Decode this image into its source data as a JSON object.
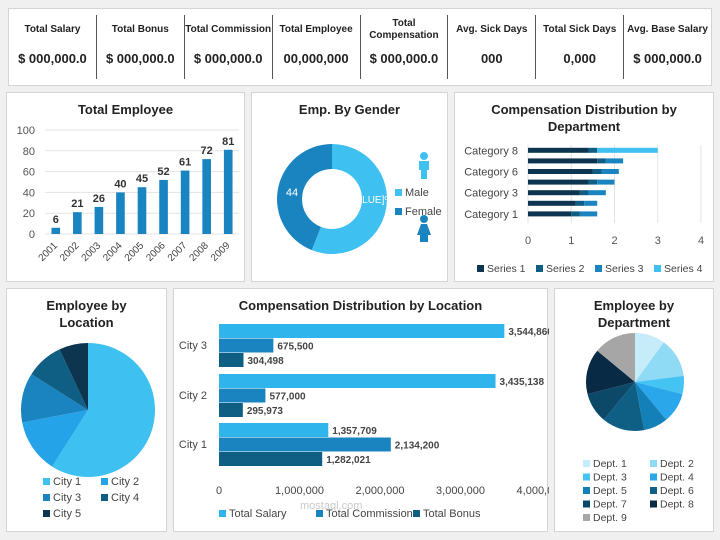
{
  "kpis": [
    {
      "label": "Total Salary",
      "value": "$ 000,000.0"
    },
    {
      "label": "Total Bonus",
      "value": "$ 000,000.0"
    },
    {
      "label": "Total Commission",
      "value": "$ 000,000.0"
    },
    {
      "label": "Total Employee",
      "value": "00,000,000"
    },
    {
      "label": "Total Compensation",
      "value": "$ 000,000.0"
    },
    {
      "label": "Avg. Sick Days",
      "value": "000"
    },
    {
      "label": "Total Sick Days",
      "value": "0,000"
    },
    {
      "label": "Avg. Base Salary",
      "value": "$ 000,000.0"
    }
  ],
  "chart_data": [
    {
      "type": "bar",
      "title": "Total Employee",
      "categories": [
        "2001",
        "2002",
        "2003",
        "2004",
        "2005",
        "2006",
        "2007",
        "2008",
        "2009"
      ],
      "values": [
        6,
        21,
        26,
        40,
        45,
        52,
        61,
        72,
        81
      ],
      "ylim": [
        0,
        100
      ],
      "yticks": [
        0,
        20,
        40,
        60,
        80,
        100
      ],
      "grid": true,
      "color": "#1a84c0"
    },
    {
      "type": "pie",
      "title": "Emp. By Gender",
      "donut": true,
      "categories": [
        "Male",
        "Female"
      ],
      "values": [
        56,
        44
      ],
      "data_labels": [
        "[VALUE]%",
        "44"
      ],
      "colors": [
        "#3ec0f0",
        "#1a84c0"
      ],
      "legend": "right"
    },
    {
      "type": "bar",
      "orientation": "horizontal",
      "stacked": true,
      "title": "Compensation Distribution by Department",
      "categories": [
        "Category 1",
        "",
        "Category 3",
        "",
        "Category 6",
        "",
        "Category 8"
      ],
      "series": [
        {
          "name": "Series 1",
          "values": [
            1.0,
            1.1,
            1.2,
            1.4,
            1.5,
            1.6,
            1.4
          ]
        },
        {
          "name": "Series 2",
          "values": [
            0.2,
            0.2,
            0.2,
            0.2,
            0.2,
            0.2,
            0.2
          ]
        },
        {
          "name": "Series 3",
          "values": [
            0.4,
            0.3,
            0.4,
            0.4,
            0.4,
            0.4,
            0.0
          ]
        },
        {
          "name": "Series 4",
          "values": [
            0,
            0,
            0,
            0,
            0,
            0,
            1.4
          ]
        }
      ],
      "xlim": [
        0,
        4
      ],
      "xticks": [
        0,
        1,
        2,
        3,
        4
      ],
      "colors": [
        "#0d3550",
        "#0f5f85",
        "#1a84c0",
        "#3ec0f0"
      ],
      "legend": "bottom"
    },
    {
      "type": "pie",
      "title": "Employee by Location",
      "categories": [
        "City 1",
        "City 2",
        "City 3",
        "City 4",
        "City 5"
      ],
      "values": [
        59,
        13,
        12,
        9,
        7
      ],
      "colors": [
        "#3ec0f0",
        "#25a3e8",
        "#1a84c0",
        "#0f5f85",
        "#0d3550"
      ],
      "legend": "bottom"
    },
    {
      "type": "bar",
      "orientation": "horizontal",
      "title": "Compensation Distribution by Location",
      "categories": [
        "City 1",
        "City 2",
        "City 3"
      ],
      "series": [
        {
          "name": "Total Salary",
          "values": [
            1357709,
            3435138,
            3544860
          ]
        },
        {
          "name": "Total Commission",
          "values": [
            2134200,
            577000,
            675500
          ]
        },
        {
          "name": "Total Bonus",
          "values": [
            1282021,
            295973,
            304498
          ]
        }
      ],
      "xlim": [
        0,
        4000000
      ],
      "xticks": [
        "0",
        "1,000,000",
        "2,000,000",
        "3,000,000",
        "4,000,000"
      ],
      "colors": [
        "#30b4ec",
        "#1a84c0",
        "#0f5f85"
      ],
      "legend": "bottom"
    },
    {
      "type": "pie",
      "title": "Employee by Department",
      "categories": [
        "Dept. 1",
        "Dept. 2",
        "Dept. 3",
        "Dept. 4",
        "Dept. 5",
        "Dept. 6",
        "Dept. 7",
        "Dept. 8",
        "Dept. 9"
      ],
      "values": [
        10,
        13,
        6,
        10,
        8,
        14,
        10,
        15,
        14
      ],
      "colors": [
        "#c5ecf8",
        "#8fdaf5",
        "#45c3f2",
        "#2aa6ea",
        "#1480b8",
        "#0f5f85",
        "#0c4868",
        "#082a44",
        "#a6a6a6"
      ],
      "legend": "bottom"
    }
  ],
  "watermark": "mostaql.com"
}
